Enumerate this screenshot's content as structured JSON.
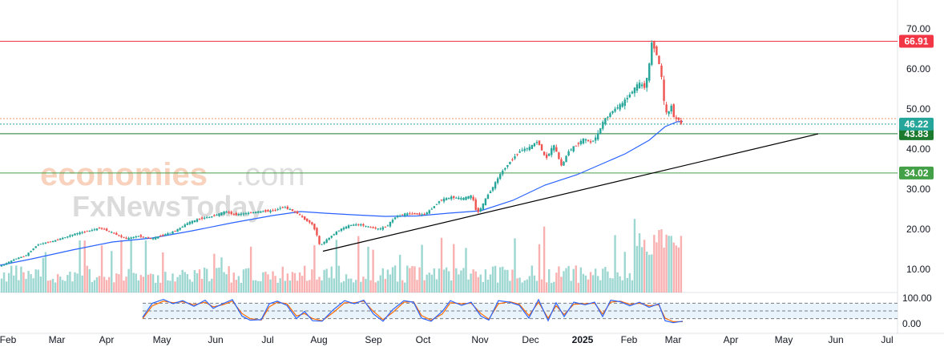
{
  "watermark": {
    "brand_main": "economies",
    "brand_suffix": ".com",
    "brand_sub": "FxNewsToday"
  },
  "chart_data": {
    "type": "candlestick",
    "price_axis": {
      "ticks": [
        "70.00",
        "60.00",
        "50.00",
        "40.00",
        "30.00",
        "20.00",
        "10.00"
      ],
      "values": [
        70,
        60,
        50,
        40,
        30,
        20,
        10
      ],
      "range": [
        6.5,
        71.5
      ]
    },
    "oscillator_axis": {
      "ticks": [
        "100.00",
        "0.00"
      ],
      "values": [
        100,
        0
      ],
      "bands": [
        80,
        50,
        20
      ]
    },
    "x_axis": {
      "labels": [
        "Feb",
        "Mar",
        "Apr",
        "May",
        "Jun",
        "Jul",
        "Aug",
        "Sep",
        "Oct",
        "Nov",
        "Dec",
        "2025",
        "Feb",
        "Mar",
        "Apr",
        "May",
        "Jun",
        "Jul"
      ],
      "bold_index": 11
    },
    "horizontal_levels": [
      {
        "value": 66.91,
        "label": "66.91",
        "color": "#f23645"
      },
      {
        "value": 43.83,
        "label": "43.83",
        "color": "#1b7a2e"
      },
      {
        "value": 34.02,
        "label": "34.02",
        "color": "#43a047"
      }
    ],
    "price_tags": [
      {
        "value": 46.22,
        "label": "46.22",
        "color": "#26a69a"
      }
    ],
    "trendline": {
      "from": {
        "x": "Aug",
        "y": 14.5
      },
      "to": {
        "x": "May",
        "y": 43.8
      }
    },
    "price_path": [
      [
        0,
        10.5
      ],
      [
        10,
        11.4
      ],
      [
        22,
        12.6
      ],
      [
        35,
        13.4
      ],
      [
        50,
        16.2
      ],
      [
        65,
        16.8
      ],
      [
        80,
        17.7
      ],
      [
        96,
        18.8
      ],
      [
        112,
        19.5
      ],
      [
        128,
        20.3
      ],
      [
        142,
        19.2
      ],
      [
        160,
        17.6
      ],
      [
        176,
        18.3
      ],
      [
        192,
        17.6
      ],
      [
        208,
        18.6
      ],
      [
        222,
        19.6
      ],
      [
        238,
        21.6
      ],
      [
        252,
        22.6
      ],
      [
        268,
        23.2
      ],
      [
        284,
        24.4
      ],
      [
        296,
        23.6
      ],
      [
        312,
        24.0
      ],
      [
        328,
        24.4
      ],
      [
        344,
        24.6
      ],
      [
        356,
        25.6
      ],
      [
        366,
        24.8
      ],
      [
        374,
        24.0
      ],
      [
        382,
        22.6
      ],
      [
        392,
        21.4
      ],
      [
        398,
        19.0
      ],
      [
        402,
        15.8
      ],
      [
        412,
        17.6
      ],
      [
        426,
        19.8
      ],
      [
        440,
        21.0
      ],
      [
        452,
        21.2
      ],
      [
        466,
        20.4
      ],
      [
        476,
        20.0
      ],
      [
        486,
        20.8
      ],
      [
        496,
        23.0
      ],
      [
        508,
        23.8
      ],
      [
        520,
        23.8
      ],
      [
        532,
        23.6
      ],
      [
        540,
        24.8
      ],
      [
        552,
        27.2
      ],
      [
        566,
        28.0
      ],
      [
        580,
        27.6
      ],
      [
        592,
        28.4
      ],
      [
        598,
        24.0
      ],
      [
        604,
        25.5
      ],
      [
        610,
        28.0
      ],
      [
        618,
        30.5
      ],
      [
        628,
        34.0
      ],
      [
        640,
        37.0
      ],
      [
        652,
        39.6
      ],
      [
        664,
        40.4
      ],
      [
        674,
        42.0
      ],
      [
        684,
        37.5
      ],
      [
        694,
        41.0
      ],
      [
        704,
        35.6
      ],
      [
        712,
        39.4
      ],
      [
        722,
        41.0
      ],
      [
        732,
        42.6
      ],
      [
        740,
        41.6
      ],
      [
        748,
        43.2
      ],
      [
        756,
        47.0
      ],
      [
        768,
        49.6
      ],
      [
        780,
        51.4
      ],
      [
        792,
        54.4
      ],
      [
        800,
        56.4
      ],
      [
        808,
        55.4
      ],
      [
        813,
        60.5
      ],
      [
        816,
        66.7
      ],
      [
        822,
        64.0
      ],
      [
        828,
        59.0
      ],
      [
        832,
        51.0
      ],
      [
        836,
        47.8
      ],
      [
        840,
        51.5
      ],
      [
        845,
        47.0
      ],
      [
        849,
        48.0
      ],
      [
        852,
        46.2
      ]
    ],
    "ma_path": [
      [
        0,
        11.0
      ],
      [
        40,
        12.6
      ],
      [
        90,
        14.8
      ],
      [
        140,
        16.8
      ],
      [
        190,
        17.8
      ],
      [
        240,
        19.6
      ],
      [
        290,
        21.6
      ],
      [
        340,
        23.4
      ],
      [
        375,
        24.4
      ],
      [
        405,
        24.0
      ],
      [
        440,
        23.6
      ],
      [
        480,
        23.2
      ],
      [
        520,
        23.3
      ],
      [
        560,
        24.0
      ],
      [
        600,
        24.6
      ],
      [
        640,
        27.2
      ],
      [
        680,
        31.0
      ],
      [
        720,
        33.6
      ],
      [
        750,
        36.2
      ],
      [
        780,
        38.8
      ],
      [
        810,
        42.2
      ],
      [
        830,
        45.6
      ],
      [
        845,
        46.8
      ],
      [
        852,
        46.9
      ]
    ],
    "stoch_k": [
      [
        178,
        25
      ],
      [
        190,
        80
      ],
      [
        204,
        95
      ],
      [
        216,
        78
      ],
      [
        228,
        90
      ],
      [
        242,
        68
      ],
      [
        256,
        92
      ],
      [
        266,
        60
      ],
      [
        278,
        78
      ],
      [
        290,
        94
      ],
      [
        302,
        30
      ],
      [
        312,
        14
      ],
      [
        326,
        16
      ],
      [
        336,
        78
      ],
      [
        346,
        88
      ],
      [
        358,
        72
      ],
      [
        370,
        20
      ],
      [
        380,
        48
      ],
      [
        390,
        12
      ],
      [
        402,
        10
      ],
      [
        416,
        55
      ],
      [
        430,
        90
      ],
      [
        442,
        78
      ],
      [
        454,
        92
      ],
      [
        466,
        38
      ],
      [
        478,
        10
      ],
      [
        490,
        55
      ],
      [
        504,
        90
      ],
      [
        516,
        84
      ],
      [
        526,
        22
      ],
      [
        538,
        10
      ],
      [
        552,
        48
      ],
      [
        562,
        90
      ],
      [
        576,
        72
      ],
      [
        588,
        84
      ],
      [
        600,
        30
      ],
      [
        610,
        14
      ],
      [
        622,
        90
      ],
      [
        636,
        84
      ],
      [
        648,
        72
      ],
      [
        660,
        22
      ],
      [
        672,
        94
      ],
      [
        684,
        12
      ],
      [
        694,
        82
      ],
      [
        704,
        28
      ],
      [
        716,
        84
      ],
      [
        730,
        74
      ],
      [
        742,
        84
      ],
      [
        752,
        28
      ],
      [
        762,
        92
      ],
      [
        774,
        86
      ],
      [
        786,
        70
      ],
      [
        798,
        84
      ],
      [
        810,
        64
      ],
      [
        822,
        78
      ],
      [
        830,
        12
      ],
      [
        840,
        4
      ],
      [
        852,
        10
      ]
    ],
    "stoch_d": [
      [
        178,
        20
      ],
      [
        190,
        70
      ],
      [
        204,
        88
      ],
      [
        216,
        82
      ],
      [
        228,
        86
      ],
      [
        242,
        74
      ],
      [
        256,
        84
      ],
      [
        266,
        66
      ],
      [
        278,
        74
      ],
      [
        290,
        88
      ],
      [
        302,
        40
      ],
      [
        312,
        20
      ],
      [
        326,
        14
      ],
      [
        336,
        66
      ],
      [
        346,
        84
      ],
      [
        358,
        78
      ],
      [
        370,
        30
      ],
      [
        380,
        40
      ],
      [
        390,
        20
      ],
      [
        402,
        12
      ],
      [
        416,
        44
      ],
      [
        430,
        82
      ],
      [
        442,
        82
      ],
      [
        454,
        88
      ],
      [
        466,
        48
      ],
      [
        478,
        16
      ],
      [
        490,
        44
      ],
      [
        504,
        84
      ],
      [
        516,
        86
      ],
      [
        526,
        32
      ],
      [
        538,
        14
      ],
      [
        552,
        38
      ],
      [
        562,
        82
      ],
      [
        576,
        78
      ],
      [
        588,
        80
      ],
      [
        600,
        40
      ],
      [
        610,
        18
      ],
      [
        622,
        78
      ],
      [
        636,
        86
      ],
      [
        648,
        76
      ],
      [
        660,
        32
      ],
      [
        672,
        84
      ],
      [
        684,
        22
      ],
      [
        694,
        70
      ],
      [
        704,
        36
      ],
      [
        716,
        76
      ],
      [
        730,
        78
      ],
      [
        742,
        80
      ],
      [
        752,
        38
      ],
      [
        762,
        84
      ],
      [
        774,
        88
      ],
      [
        786,
        76
      ],
      [
        798,
        80
      ],
      [
        810,
        70
      ],
      [
        822,
        74
      ],
      [
        830,
        22
      ],
      [
        840,
        8
      ],
      [
        852,
        8
      ]
    ],
    "colors": {
      "up": "#26a69a",
      "down": "#ef5350",
      "ma": "#2962ff",
      "stoch_k": "#2962ff",
      "stoch_d": "#ff6d00",
      "trend": "#000000"
    }
  }
}
